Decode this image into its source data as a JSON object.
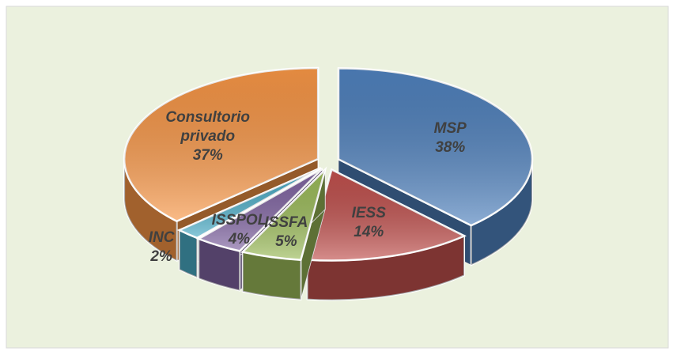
{
  "chart_data": {
    "type": "pie3d",
    "categories": [
      "MSP",
      "IESS",
      "ISSFA",
      "ISSPOL",
      "INC",
      "Consultorio privado"
    ],
    "values": [
      38,
      14,
      5,
      4,
      2,
      37
    ],
    "value_labels": [
      "38%",
      "14%",
      "5%",
      "4%",
      "2%",
      "37%"
    ],
    "colors": [
      "#4f81bd",
      "#c0504d",
      "#9bbb59",
      "#8064a2",
      "#4bacc6",
      "#f79646"
    ]
  }
}
